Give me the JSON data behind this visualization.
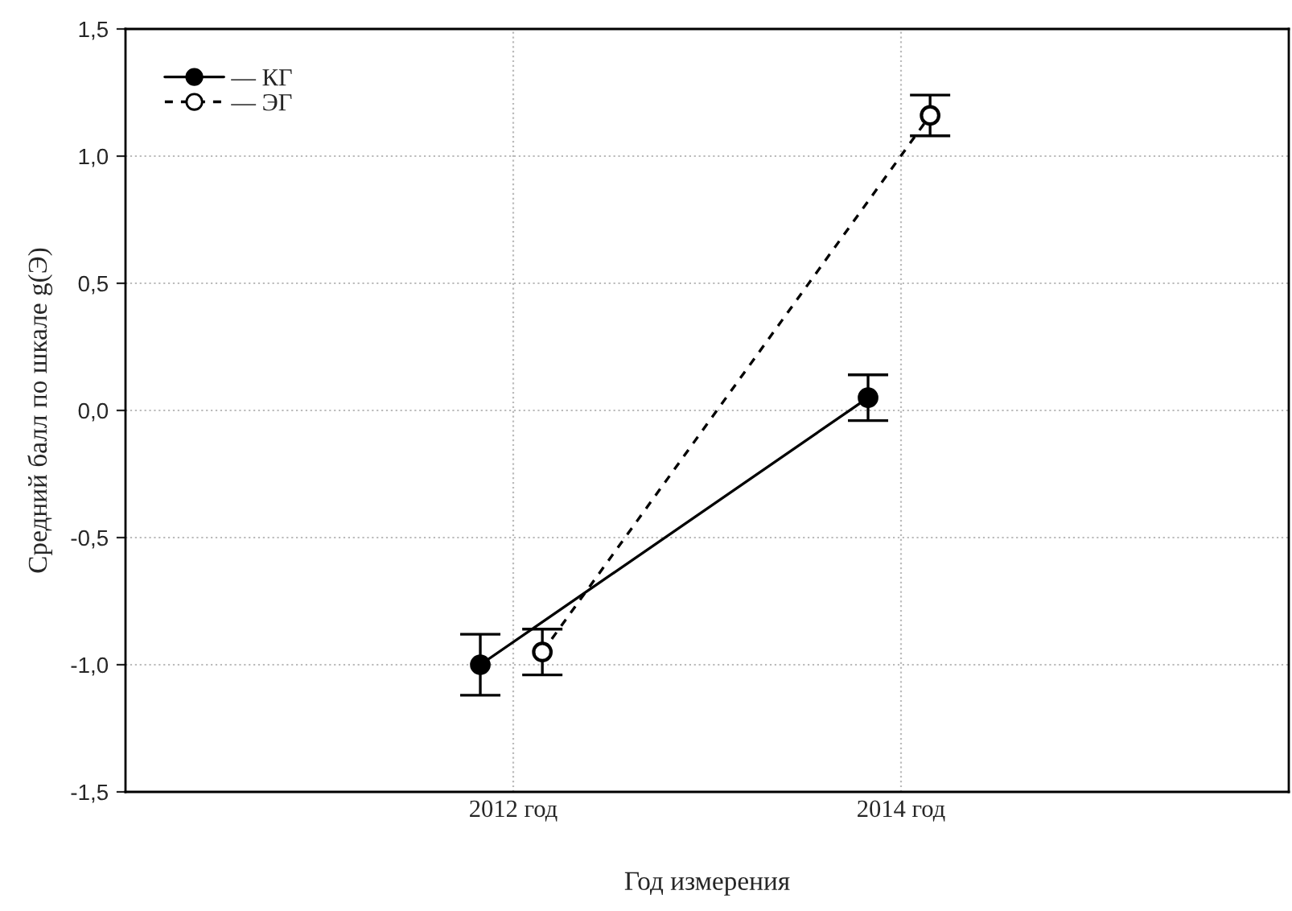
{
  "chart_data": {
    "type": "line",
    "xlabel": "Год измерения",
    "ylabel": "Средний балл по шкале g(Э)",
    "series": [
      {
        "name": "— КГ",
        "color": "#000000",
        "x": [
          2011.83,
          2013.83
        ],
        "values": [
          -1.0,
          0.05
        ],
        "errors": [
          0.12,
          0.09
        ],
        "marker": "circle",
        "line_style": "solid"
      },
      {
        "name": "— ЭГ",
        "color": "#000000",
        "x": [
          2012.15,
          2014.15
        ],
        "values": [
          -0.95,
          1.16
        ],
        "errors": [
          0.09,
          0.08
        ],
        "marker": "circle",
        "line_style": "dashed"
      }
    ],
    "xlim": [
      2010,
      2016
    ],
    "xticks": [
      {
        "value": 2012,
        "label": "2012 год"
      },
      {
        "value": 2014,
        "label": "2014 год"
      }
    ],
    "ylim": [
      -1.5,
      1.5
    ],
    "yticks": [
      {
        "value": -1.5,
        "label": "-1,5"
      },
      {
        "value": -1.0,
        "label": "-1,0"
      },
      {
        "value": -0.5,
        "label": "-0,5"
      },
      {
        "value": 0.0,
        "label": "0,0"
      },
      {
        "value": 0.5,
        "label": "0,5"
      },
      {
        "value": 1.0,
        "label": "1,0"
      },
      {
        "value": 1.5,
        "label": "1,5"
      }
    ],
    "grid": true,
    "legend": "top left"
  }
}
